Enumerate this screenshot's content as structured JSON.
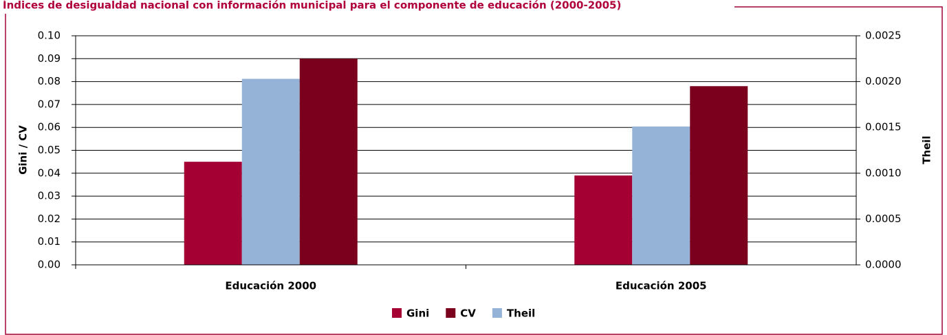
{
  "chart_data": {
    "type": "bar",
    "title": "Índices de desigualdad nacional con información municipal para el componente de educación (2000-2005)",
    "categories": [
      "Educación 2000",
      "Educación 2005"
    ],
    "series": [
      {
        "name": "Gini",
        "color": "#a50034",
        "values": [
          0.045,
          0.039
        ]
      },
      {
        "name": "CV",
        "color": "#7a001e",
        "values": [
          0.09,
          0.078
        ]
      },
      {
        "name": "Theil",
        "color": "#95b3d7",
        "axis": "y2",
        "values": [
          0.00203,
          0.00151
        ]
      }
    ],
    "ylabel": "Gini / CV",
    "y2label": "Theil",
    "ylim": [
      0,
      0.1
    ],
    "yticks": [
      {
        "value": 0,
        "label": "0.00"
      },
      0.01,
      0.02,
      0.03,
      0.04,
      0.05,
      0.06,
      0.07,
      0.08,
      0.09,
      {
        "value": 0.1,
        "label": "0.10"
      }
    ],
    "y2lim": [
      0,
      0.0025
    ],
    "y2ticks": [
      {
        "value": 0,
        "label": "0.0000"
      },
      0.0005,
      {
        "value": 0.001,
        "label": "0.0010"
      },
      0.0015,
      {
        "value": 0.002,
        "label": "0.0020"
      },
      0.0025
    ],
    "grid": true,
    "legend": "bottom"
  }
}
